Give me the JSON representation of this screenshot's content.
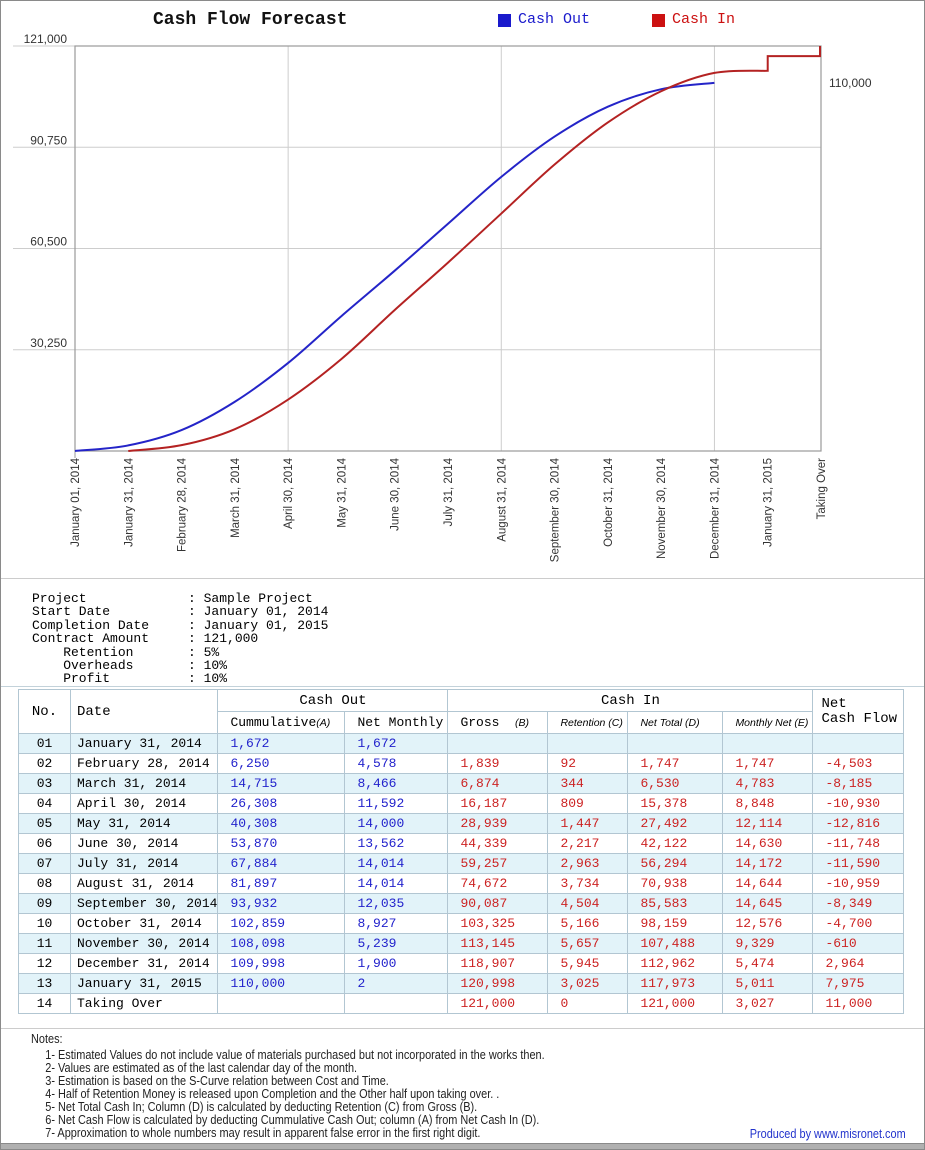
{
  "chart": {
    "title": "Cash Flow Forecast",
    "legend": [
      {
        "label": "Cash Out",
        "color": "#1a1acc"
      },
      {
        "label": "Cash In",
        "color": "#cc1111"
      }
    ]
  },
  "chart_data": {
    "type": "line",
    "title": "Cash Flow Forecast",
    "categories": [
      "January 01, 2014",
      "January 31, 2014",
      "February 28, 2014",
      "March 31, 2014",
      "April 30, 2014",
      "May 31, 2014",
      "June 30, 2014",
      "July 31, 2014",
      "August 31, 2014",
      "September 30, 2014",
      "October 31, 2014",
      "November 30, 2014",
      "December 31, 2014",
      "January 31, 2015",
      "Taking Over"
    ],
    "y_tick_values": [
      30250,
      60500,
      90750,
      121000
    ],
    "y_tick_labels": [
      "30,250",
      "60,500",
      "90,750",
      "121,000"
    ],
    "ylim": [
      0,
      121000
    ],
    "right_axis_label": "110,000",
    "right_axis_value": 110000,
    "grid_vertical_ticks": [
      4,
      8,
      12
    ],
    "colors": {
      "grid": "#cdcdcd",
      "plot_border": "#9a9a9a"
    },
    "series": [
      {
        "name": "Cash Out",
        "color": "#2424c8",
        "start_tick": 0,
        "values": [
          0,
          1672,
          6250,
          14715,
          26308,
          40308,
          53870,
          67884,
          81897,
          93932,
          102859,
          108098,
          109998
        ],
        "final_value": 110000
      },
      {
        "name": "Cash In",
        "color": "#b42222",
        "start_tick": 1,
        "values": [
          0,
          1747,
          6530,
          15378,
          27492,
          42122,
          56294,
          70938,
          85583,
          98159,
          107488,
          112962,
          113600
        ],
        "end_steps": [
          117973,
          121000
        ]
      }
    ]
  },
  "info": {
    "rows": [
      {
        "label": "Project",
        "value": "Sample Project",
        "indent": false
      },
      {
        "label": "Start Date",
        "value": "January 01, 2014",
        "indent": false
      },
      {
        "label": "Completion Date",
        "value": "January 01, 2015",
        "indent": false
      },
      {
        "label": "Contract Amount",
        "value": "121,000",
        "indent": false
      },
      {
        "label": "Retention",
        "value": "5%",
        "indent": true
      },
      {
        "label": "Overheads",
        "value": "10%",
        "indent": true
      },
      {
        "label": "Profit",
        "value": "10%",
        "indent": true
      }
    ]
  },
  "table": {
    "group_headers": {
      "no": "No.",
      "date": "Date",
      "cash_out": "Cash Out",
      "cash_in": "Cash In",
      "net_cash_flow": "Net\nCash Flow"
    },
    "sub_headers": [
      {
        "text": "Cummulative",
        "suffix": "(A)"
      },
      {
        "text": "Net Monthly",
        "suffix": ""
      },
      {
        "text": "Gross  ",
        "suffix": "(B)"
      },
      {
        "text": "",
        "suffix": "Retention (C)"
      },
      {
        "text": "",
        "suffix": "Net Total (D)"
      },
      {
        "text": "",
        "suffix": "Monthly Net (E)"
      }
    ],
    "rows": [
      [
        "01",
        "January 31, 2014",
        "1,672",
        "1,672",
        "",
        "",
        "",
        "",
        ""
      ],
      [
        "02",
        "February 28, 2014",
        "6,250",
        "4,578",
        "1,839",
        "92",
        "1,747",
        "1,747",
        "-4,503"
      ],
      [
        "03",
        "March 31, 2014",
        "14,715",
        "8,466",
        "6,874",
        "344",
        "6,530",
        "4,783",
        "-8,185"
      ],
      [
        "04",
        "April 30, 2014",
        "26,308",
        "11,592",
        "16,187",
        "809",
        "15,378",
        "8,848",
        "-10,930"
      ],
      [
        "05",
        "May 31, 2014",
        "40,308",
        "14,000",
        "28,939",
        "1,447",
        "27,492",
        "12,114",
        "-12,816"
      ],
      [
        "06",
        "June 30, 2014",
        "53,870",
        "13,562",
        "44,339",
        "2,217",
        "42,122",
        "14,630",
        "-11,748"
      ],
      [
        "07",
        "July 31, 2014",
        "67,884",
        "14,014",
        "59,257",
        "2,963",
        "56,294",
        "14,172",
        "-11,590"
      ],
      [
        "08",
        "August 31, 2014",
        "81,897",
        "14,014",
        "74,672",
        "3,734",
        "70,938",
        "14,644",
        "-10,959"
      ],
      [
        "09",
        "September 30, 2014",
        "93,932",
        "12,035",
        "90,087",
        "4,504",
        "85,583",
        "14,645",
        "-8,349"
      ],
      [
        "10",
        "October 31, 2014",
        "102,859",
        "8,927",
        "103,325",
        "5,166",
        "98,159",
        "12,576",
        "-4,700"
      ],
      [
        "11",
        "November 30, 2014",
        "108,098",
        "5,239",
        "113,145",
        "5,657",
        "107,488",
        "9,329",
        "-610"
      ],
      [
        "12",
        "December 31, 2014",
        "109,998",
        "1,900",
        "118,907",
        "5,945",
        "112,962",
        "5,474",
        "2,964"
      ],
      [
        "13",
        "January 31, 2015",
        "110,000",
        "2",
        "120,998",
        "3,025",
        "117,973",
        "5,011",
        "7,975"
      ],
      [
        "14",
        "Taking Over",
        "",
        "",
        "121,000",
        "0",
        "121,000",
        "3,027",
        "11,000"
      ]
    ]
  },
  "notes": {
    "heading": "Notes:",
    "items": [
      "1- Estimated Values do not include value of materials purchased but not incorporated in the works then.",
      "2- Values are estimated as of the last calendar day of the month.",
      "3- Estimation is based on the S-Curve relation between Cost and Time.",
      "4- Half of Retention Money is released upon Completion and the Other half upon taking over. .",
      "5- Net Total Cash In; Column (D) is calculated by deducting Retention (C) from Gross (B).",
      "6- Net Cash Flow is calculated by deducting Cummulative Cash Out; column (A) from Net Cash In (D).",
      "7- Approximation to whole numbers may result in apparent false error in the first right digit."
    ]
  },
  "footer": {
    "produced_by": "Produced by www.misronet.com"
  }
}
